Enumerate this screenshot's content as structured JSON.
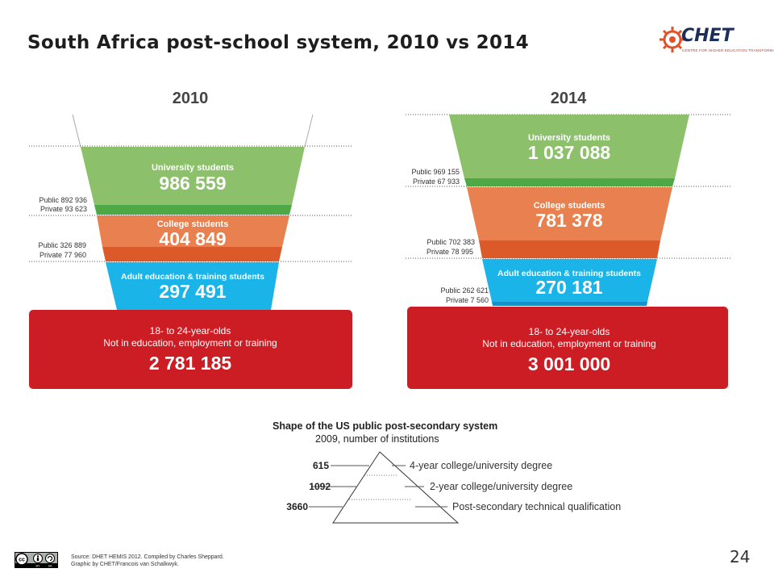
{
  "slide": {
    "title": "South Africa post-school system, 2010 vs 2014",
    "page_number": "24",
    "source_line1": "Source: DHET HEMIS 2012. Compiled by Charles Sheppard.",
    "source_line2": "Graphic by CHET/Francois van Schalkwyk.",
    "logo": {
      "name": "CHET",
      "subtitle": "CENTRE FOR HIGHER EDUCATION TRANSFORMATION"
    },
    "license_badge": {
      "cc": "cc",
      "by": "BY",
      "sa": "SA"
    }
  },
  "funnels": [
    {
      "year": "2010",
      "university": {
        "label": "University students",
        "value": "986 559",
        "public": "Public 892 936",
        "private": "Private 93 623"
      },
      "college": {
        "label": "College students",
        "value": "404 849",
        "public": "Public 326 889",
        "private": "Private 77 960"
      },
      "adult": {
        "label": "Adult education & training students",
        "value": "297 491"
      },
      "neet": {
        "line1": "18- to 24-year-olds",
        "line2": "Not in education, employment or training",
        "value": "2 781 185"
      }
    },
    {
      "year": "2014",
      "university": {
        "label": "University students",
        "value": "1 037 088",
        "public": "Public 969 155",
        "private": "Private 67 933"
      },
      "college": {
        "label": "College students",
        "value": "781 378",
        "public": "Public 702 383",
        "private": "Private 78 995"
      },
      "adult": {
        "label": "Adult education & training students",
        "value": "270 181",
        "public": "Public 262 621",
        "private": "Private 7 560"
      },
      "neet": {
        "line1": "18- to 24-year-olds",
        "line2": "Not in education, employment or training",
        "value": "3 001 000"
      }
    }
  ],
  "us_pyramid": {
    "title": "Shape of the US public post-secondary system",
    "subtitle": "2009, number of institutions",
    "tiers": [
      {
        "count": "615",
        "label": "4-year college/university degree"
      },
      {
        "count": "1092",
        "label": "2-year college/university degree"
      },
      {
        "count": "3660",
        "label": "Post-secondary technical qualification"
      }
    ]
  },
  "colors": {
    "university": "#8cc06b",
    "university_dark": "#4ea846",
    "college": "#e9804f",
    "college_dark": "#dc5a2a",
    "adult": "#1ab4e8",
    "adult_dark": "#1590c8",
    "neet": "#cc1d24"
  }
}
